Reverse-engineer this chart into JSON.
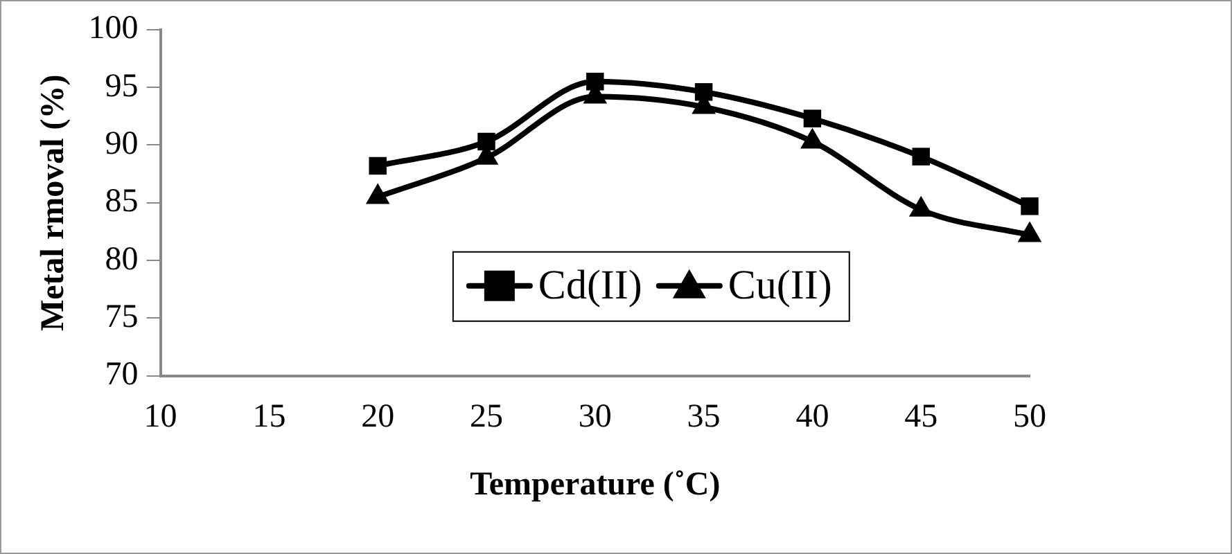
{
  "chart_data": {
    "type": "line",
    "xlabel": "Temperature (˚C)",
    "ylabel": "Metal rmoval (%)",
    "x": [
      20,
      25,
      30,
      35,
      40,
      45,
      50
    ],
    "series": [
      {
        "name": "Cd(II)",
        "color": "#000000",
        "marker": "square",
        "values": [
          88.2,
          90.3,
          95.5,
          94.6,
          92.3,
          89.0,
          84.7
        ]
      },
      {
        "name": "Cu(II)",
        "color": "#000000",
        "marker": "triangle",
        "values": [
          85.5,
          88.9,
          94.2,
          93.3,
          90.3,
          84.4,
          82.2
        ]
      }
    ],
    "xlim": [
      10,
      50
    ],
    "xticks": [
      10,
      15,
      20,
      25,
      30,
      35,
      40,
      45,
      50
    ],
    "ylim": [
      70,
      100
    ],
    "yticks": [
      70,
      75,
      80,
      85,
      90,
      95,
      100
    ],
    "grid": false,
    "legend": "bottom",
    "line_style": "solid"
  }
}
